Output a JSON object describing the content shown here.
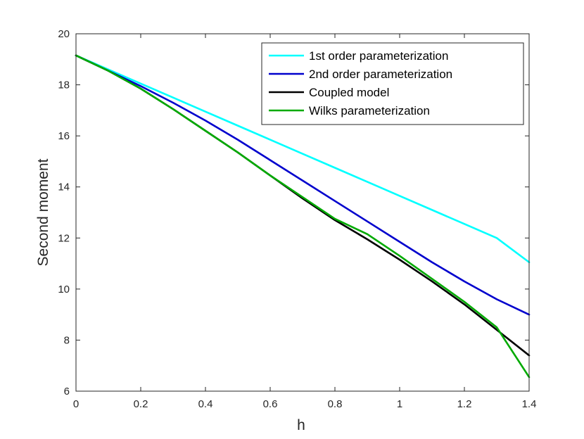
{
  "chart_data": {
    "type": "line",
    "title": "",
    "xlabel": "h",
    "ylabel": "Second moment",
    "xlim": [
      0,
      1.4
    ],
    "ylim": [
      6,
      20
    ],
    "x_ticks": [
      0,
      0.2,
      0.4,
      0.6,
      0.8,
      1,
      1.2,
      1.4
    ],
    "x_tick_labels": [
      "0",
      "0.2",
      "0.4",
      "0.6",
      "0.8",
      "1",
      "1.2",
      "1.4"
    ],
    "y_ticks": [
      6,
      8,
      10,
      12,
      14,
      16,
      18,
      20
    ],
    "y_tick_labels": [
      "6",
      "8",
      "10",
      "12",
      "14",
      "16",
      "18",
      "20"
    ],
    "grid": false,
    "box": true,
    "legend_position": "top-right",
    "series": [
      {
        "name": "1st order parameterization",
        "color": "#00ffff",
        "x": [
          0,
          0.1,
          0.2,
          0.3,
          0.4,
          0.5,
          0.6,
          0.7,
          0.8,
          0.9,
          1.0,
          1.1,
          1.2,
          1.3,
          1.4
        ],
        "y": [
          19.15,
          18.6,
          18.05,
          17.5,
          16.95,
          16.4,
          15.85,
          15.3,
          14.75,
          14.2,
          13.65,
          13.1,
          12.55,
          12.0,
          11.05
        ]
      },
      {
        "name": "2nd order parameterization",
        "color": "#0000cd",
        "x": [
          0,
          0.1,
          0.2,
          0.3,
          0.4,
          0.5,
          0.6,
          0.7,
          0.8,
          0.9,
          1.0,
          1.1,
          1.2,
          1.3,
          1.4
        ],
        "y": [
          19.15,
          18.55,
          17.95,
          17.3,
          16.6,
          15.85,
          15.05,
          14.25,
          13.45,
          12.65,
          11.85,
          11.05,
          10.3,
          9.6,
          9.0
        ]
      },
      {
        "name": "Coupled model",
        "color": "#000000",
        "x": [
          0,
          0.1,
          0.2,
          0.3,
          0.4,
          0.5,
          0.6,
          0.7,
          0.8,
          0.9,
          1.0,
          1.1,
          1.2,
          1.3,
          1.4
        ],
        "y": [
          19.15,
          18.55,
          17.85,
          17.05,
          16.2,
          15.35,
          14.45,
          13.55,
          12.7,
          11.95,
          11.15,
          10.3,
          9.4,
          8.4,
          7.4
        ]
      },
      {
        "name": "Wilks parameterization",
        "color": "#00aa00",
        "x": [
          0,
          0.1,
          0.2,
          0.3,
          0.4,
          0.5,
          0.6,
          0.7,
          0.8,
          0.9,
          1.0,
          1.1,
          1.2,
          1.3,
          1.4
        ],
        "y": [
          19.15,
          18.55,
          17.85,
          17.05,
          16.2,
          15.35,
          14.45,
          13.6,
          12.75,
          12.15,
          11.3,
          10.4,
          9.5,
          8.5,
          6.55
        ]
      }
    ]
  }
}
